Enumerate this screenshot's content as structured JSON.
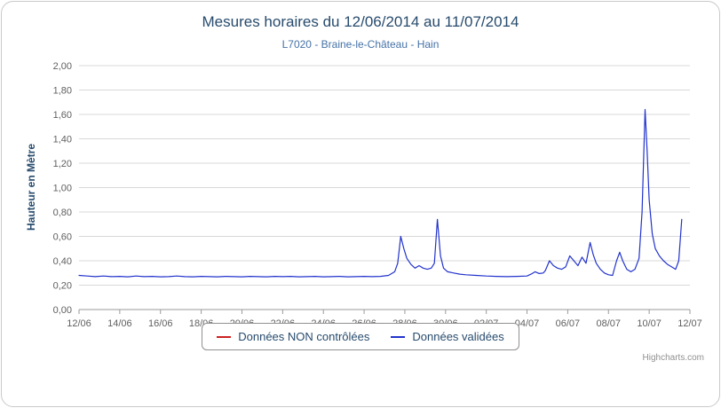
{
  "chart_data": {
    "type": "line",
    "title": "Mesures horaires du 12/06/2014 au 11/07/2014",
    "subtitle": "L7020 - Braine-le-Château - Hain",
    "ylabel": "Hauteur en Mètre",
    "ylim": [
      0,
      2
    ],
    "ytick_step": 0.2,
    "ytick_labels": [
      "0,00",
      "0,20",
      "0,40",
      "0,60",
      "0,80",
      "1,00",
      "1,20",
      "1,40",
      "1,60",
      "1,80",
      "2,00"
    ],
    "xtick_labels": [
      "12/06",
      "14/06",
      "16/06",
      "18/06",
      "20/06",
      "22/06",
      "24/06",
      "26/06",
      "28/06",
      "30/06",
      "02/07",
      "04/07",
      "06/07",
      "08/07",
      "10/07",
      "12/07"
    ],
    "x_range_days": 30,
    "grid": "horizontal",
    "legend_position": "bottom",
    "credits": "Highcharts.com",
    "series": [
      {
        "name": "Données NON contrôlées",
        "color": "#cc2222",
        "points": []
      },
      {
        "name": "Données validées",
        "color": "#2233cc",
        "points": [
          [
            0,
            0.28
          ],
          [
            0.4,
            0.275
          ],
          [
            0.8,
            0.27
          ],
          [
            1.2,
            0.275
          ],
          [
            1.6,
            0.27
          ],
          [
            2,
            0.272
          ],
          [
            2.4,
            0.268
          ],
          [
            2.8,
            0.275
          ],
          [
            3.2,
            0.27
          ],
          [
            3.6,
            0.272
          ],
          [
            4,
            0.268
          ],
          [
            4.4,
            0.27
          ],
          [
            4.8,
            0.275
          ],
          [
            5.2,
            0.27
          ],
          [
            5.6,
            0.268
          ],
          [
            6,
            0.272
          ],
          [
            6.4,
            0.27
          ],
          [
            6.8,
            0.268
          ],
          [
            7.2,
            0.272
          ],
          [
            7.6,
            0.27
          ],
          [
            8,
            0.268
          ],
          [
            8.4,
            0.272
          ],
          [
            8.8,
            0.27
          ],
          [
            9.2,
            0.268
          ],
          [
            9.6,
            0.272
          ],
          [
            10,
            0.27
          ],
          [
            10.4,
            0.272
          ],
          [
            10.8,
            0.268
          ],
          [
            11.2,
            0.27
          ],
          [
            11.6,
            0.272
          ],
          [
            12,
            0.268
          ],
          [
            12.4,
            0.27
          ],
          [
            12.8,
            0.272
          ],
          [
            13.2,
            0.268
          ],
          [
            13.6,
            0.27
          ],
          [
            14,
            0.272
          ],
          [
            14.4,
            0.27
          ],
          [
            14.8,
            0.272
          ],
          [
            15.2,
            0.28
          ],
          [
            15.5,
            0.31
          ],
          [
            15.65,
            0.38
          ],
          [
            15.8,
            0.6
          ],
          [
            15.95,
            0.5
          ],
          [
            16.1,
            0.42
          ],
          [
            16.3,
            0.37
          ],
          [
            16.5,
            0.34
          ],
          [
            16.7,
            0.36
          ],
          [
            16.9,
            0.34
          ],
          [
            17.1,
            0.33
          ],
          [
            17.3,
            0.34
          ],
          [
            17.45,
            0.38
          ],
          [
            17.6,
            0.74
          ],
          [
            17.75,
            0.44
          ],
          [
            17.9,
            0.34
          ],
          [
            18.1,
            0.31
          ],
          [
            18.4,
            0.3
          ],
          [
            18.7,
            0.29
          ],
          [
            19,
            0.285
          ],
          [
            19.5,
            0.28
          ],
          [
            20,
            0.275
          ],
          [
            20.5,
            0.272
          ],
          [
            21,
            0.27
          ],
          [
            21.5,
            0.272
          ],
          [
            22,
            0.275
          ],
          [
            22.2,
            0.29
          ],
          [
            22.4,
            0.31
          ],
          [
            22.6,
            0.295
          ],
          [
            22.8,
            0.3
          ],
          [
            22.9,
            0.32
          ],
          [
            23.1,
            0.4
          ],
          [
            23.3,
            0.36
          ],
          [
            23.5,
            0.34
          ],
          [
            23.7,
            0.33
          ],
          [
            23.9,
            0.35
          ],
          [
            24.1,
            0.44
          ],
          [
            24.3,
            0.4
          ],
          [
            24.5,
            0.36
          ],
          [
            24.7,
            0.43
          ],
          [
            24.9,
            0.38
          ],
          [
            25.1,
            0.55
          ],
          [
            25.25,
            0.45
          ],
          [
            25.4,
            0.38
          ],
          [
            25.6,
            0.33
          ],
          [
            25.8,
            0.3
          ],
          [
            26,
            0.285
          ],
          [
            26.2,
            0.28
          ],
          [
            26.4,
            0.4
          ],
          [
            26.55,
            0.47
          ],
          [
            26.7,
            0.4
          ],
          [
            26.9,
            0.33
          ],
          [
            27.1,
            0.31
          ],
          [
            27.3,
            0.33
          ],
          [
            27.5,
            0.42
          ],
          [
            27.65,
            0.8
          ],
          [
            27.8,
            1.64
          ],
          [
            27.9,
            1.3
          ],
          [
            28,
            0.9
          ],
          [
            28.15,
            0.62
          ],
          [
            28.3,
            0.5
          ],
          [
            28.5,
            0.44
          ],
          [
            28.7,
            0.4
          ],
          [
            28.9,
            0.37
          ],
          [
            29.1,
            0.35
          ],
          [
            29.3,
            0.33
          ],
          [
            29.45,
            0.4
          ],
          [
            29.6,
            0.74
          ]
        ]
      }
    ]
  }
}
